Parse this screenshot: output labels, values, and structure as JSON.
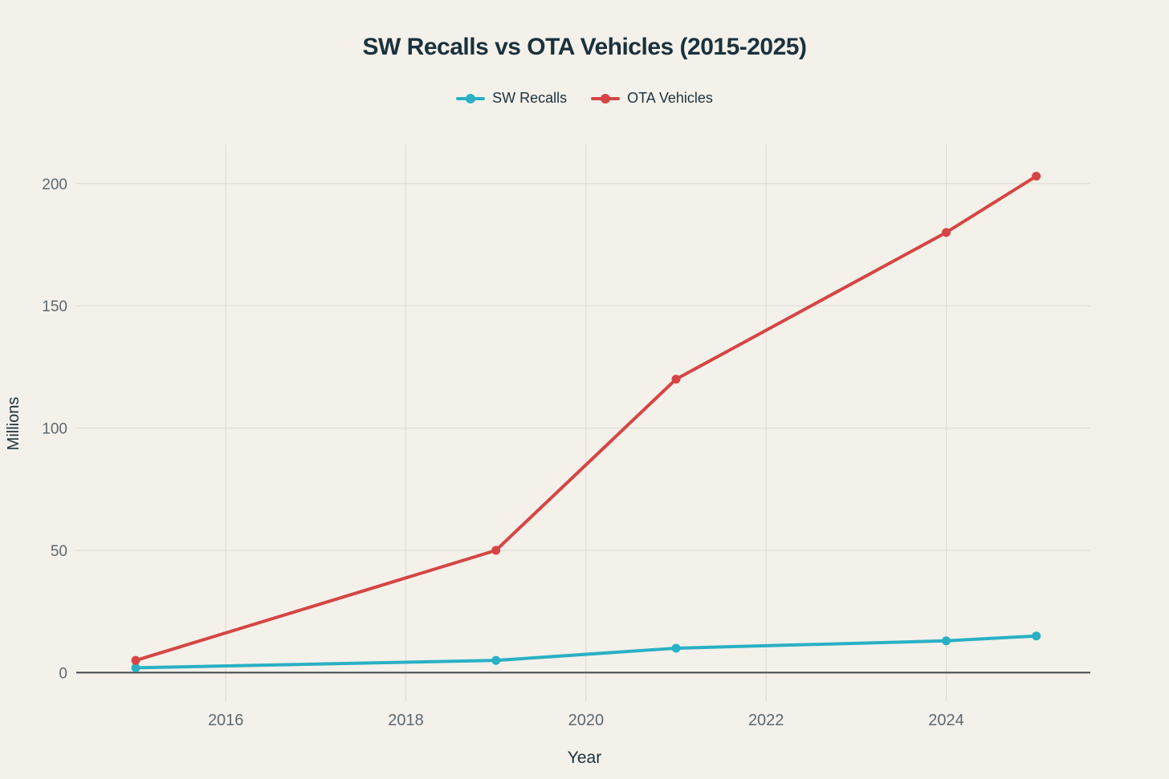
{
  "chart_data": {
    "type": "line",
    "title": "SW Recalls vs OTA Vehicles (2015-2025)",
    "xlabel": "Year",
    "ylabel": "Millions",
    "x": [
      2015,
      2019,
      2021,
      2024,
      2025
    ],
    "series": [
      {
        "name": "SW Recalls",
        "color": "#2AB0C4",
        "values": [
          2,
          5,
          10,
          13,
          15
        ]
      },
      {
        "name": "OTA Vehicles",
        "color": "#D64545",
        "values": [
          5,
          50,
          120,
          180,
          203
        ]
      }
    ],
    "x_ticks": [
      2016,
      2018,
      2020,
      2022,
      2024
    ],
    "y_ticks": [
      0,
      50,
      100,
      150,
      200
    ],
    "x_range": [
      2014.34,
      2025.6
    ],
    "y_range": [
      -12,
      216
    ],
    "grid": true,
    "legend_position": "top-center"
  },
  "colors": {
    "background": "#F3F1EA",
    "text_dark": "#1B323C",
    "tick_text": "#5D686E",
    "grid": "#DBDAD2",
    "zero_line": "#43484C"
  }
}
